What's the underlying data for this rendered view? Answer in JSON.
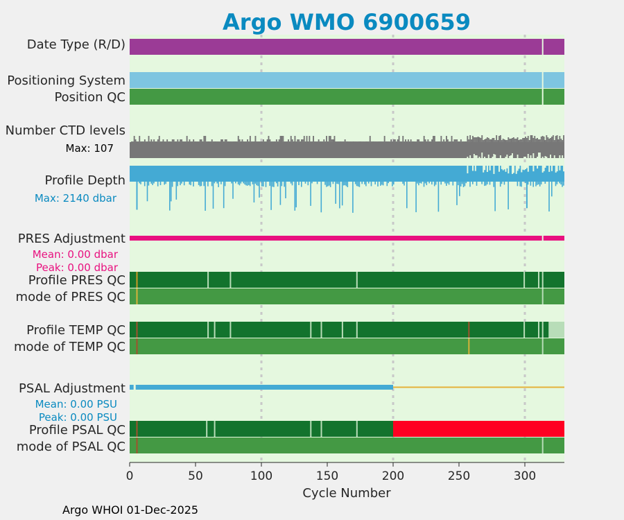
{
  "chart_data": {
    "type": "timeline",
    "title": "Argo WMO 6900659",
    "xlabel": "Cycle Number",
    "xlim": [
      0,
      330
    ],
    "xticks": [
      0,
      50,
      100,
      150,
      200,
      250,
      300
    ],
    "grid_lines": [
      100,
      200,
      300
    ],
    "footer": "Argo WHOI 01-Dec-2025",
    "rows": [
      {
        "id": "date-type",
        "label": "Date Type (R/D)",
        "color": "#9b3b96",
        "segments": [
          [
            0,
            330
          ]
        ],
        "gaps": [
          313
        ]
      },
      {
        "id": "positioning-system",
        "label": "Positioning System",
        "color": "#7ec5e0",
        "segments": [
          [
            0,
            330
          ]
        ],
        "gaps": [
          313
        ]
      },
      {
        "id": "position-qc",
        "label": "Position QC",
        "color": "#449944",
        "segments": [
          [
            0,
            330
          ]
        ],
        "gaps": [
          313
        ]
      },
      {
        "id": "number-ctd-levels",
        "label": "Number CTD levels",
        "note": "Max: 107",
        "color": "#777777",
        "max": 107
      },
      {
        "id": "profile-depth",
        "label": "Profile Depth",
        "note": "Max: 2140 dbar",
        "color": "#44aad4",
        "max_dbar": 2140,
        "deep_spikes": [
          {
            "cycle": 5,
            "depth": 0.9
          },
          {
            "cycle": 301,
            "depth": 0.85
          }
        ]
      },
      {
        "id": "pres-adjustment",
        "label": "PRES Adjustment",
        "color": "#e8117f",
        "mean": "Mean: 0.00 dbar",
        "peak": "Peak: 0.00 dbar",
        "segments": [
          [
            0,
            330
          ]
        ],
        "gaps": [
          313
        ]
      },
      {
        "id": "profile-pres-qc",
        "label": "Profile PRES QC",
        "color": "#13732d",
        "marks": [
          {
            "cycle": 5,
            "color": "#c89b25"
          },
          {
            "cycle": 59,
            "color": "#b8ddb8"
          },
          {
            "cycle": 76,
            "color": "#b8ddb8"
          },
          {
            "cycle": 172,
            "color": "#b8ddb8"
          },
          {
            "cycle": 299,
            "color": "#b8ddb8"
          },
          {
            "cycle": 310,
            "color": "#b8ddb8"
          },
          {
            "cycle": 313,
            "color": "#b8ddb8"
          }
        ]
      },
      {
        "id": "mode-pres-qc",
        "label": "mode of PRES QC",
        "color": "#449944",
        "marks": [
          {
            "cycle": 5,
            "color": "#d6b23a"
          },
          {
            "cycle": 313,
            "color": "#b8ddb8"
          }
        ]
      },
      {
        "id": "profile-temp-qc",
        "label": "Profile TEMP QC",
        "color": "#13732d",
        "marks": [
          {
            "cycle": 5,
            "color": "#a0522d"
          },
          {
            "cycle": 59,
            "color": "#b8ddb8"
          },
          {
            "cycle": 64,
            "color": "#b8ddb8"
          },
          {
            "cycle": 76,
            "color": "#b8ddb8"
          },
          {
            "cycle": 137,
            "color": "#b8ddb8"
          },
          {
            "cycle": 145,
            "color": "#b8ddb8"
          },
          {
            "cycle": 161,
            "color": "#b8ddb8"
          },
          {
            "cycle": 172,
            "color": "#b8ddb8"
          },
          {
            "cycle": 257,
            "color": "#a0522d"
          },
          {
            "cycle": 299,
            "color": "#b8ddb8"
          },
          {
            "cycle": 310,
            "color": "#b8ddb8"
          },
          {
            "cycle": 313,
            "color": "#b8ddb8"
          }
        ],
        "tail": {
          "from": 318,
          "to": 330,
          "color": "#b8ddb8"
        }
      },
      {
        "id": "mode-temp-qc",
        "label": "mode of TEMP QC",
        "color": "#449944",
        "marks": [
          {
            "cycle": 5,
            "color": "#a0522d"
          },
          {
            "cycle": 257,
            "color": "#d6b23a"
          },
          {
            "cycle": 313,
            "color": "#b8ddb8"
          }
        ]
      },
      {
        "id": "psal-adjustment",
        "label": "PSAL Adjustment",
        "color": "#44aad4",
        "mean": "Mean: 0.00 PSU",
        "peak": "Peak: 0.00 PSU",
        "segments": [
          [
            0,
            200
          ]
        ],
        "line_after": {
          "from": 200,
          "to": 330,
          "color": "#e5b23a"
        }
      },
      {
        "id": "profile-psal-qc",
        "label": "Profile PSAL QC",
        "color": "#13732d",
        "marks": [
          {
            "cycle": 5,
            "color": "#a0522d"
          },
          {
            "cycle": 58,
            "color": "#b8ddb8"
          },
          {
            "cycle": 64,
            "color": "#b8ddb8"
          },
          {
            "cycle": 137,
            "color": "#b8ddb8"
          },
          {
            "cycle": 145,
            "color": "#b8ddb8"
          },
          {
            "cycle": 172,
            "color": "#b8ddb8"
          }
        ],
        "tail": {
          "from": 200,
          "to": 330,
          "color": "#ff0022"
        }
      },
      {
        "id": "mode-psal-qc",
        "label": "mode of PSAL QC",
        "color": "#449944",
        "marks": [
          {
            "cycle": 5,
            "color": "#a0522d"
          },
          {
            "cycle": 313,
            "color": "#b8ddb8"
          }
        ]
      }
    ],
    "colors": {
      "background": "#e5f8df",
      "title": "#0a8ac0",
      "grid": "#c8c8c8",
      "pres_text": "#e8117f",
      "psal_text": "#0a8ac0",
      "depth_text": "#0a8ac0"
    }
  }
}
